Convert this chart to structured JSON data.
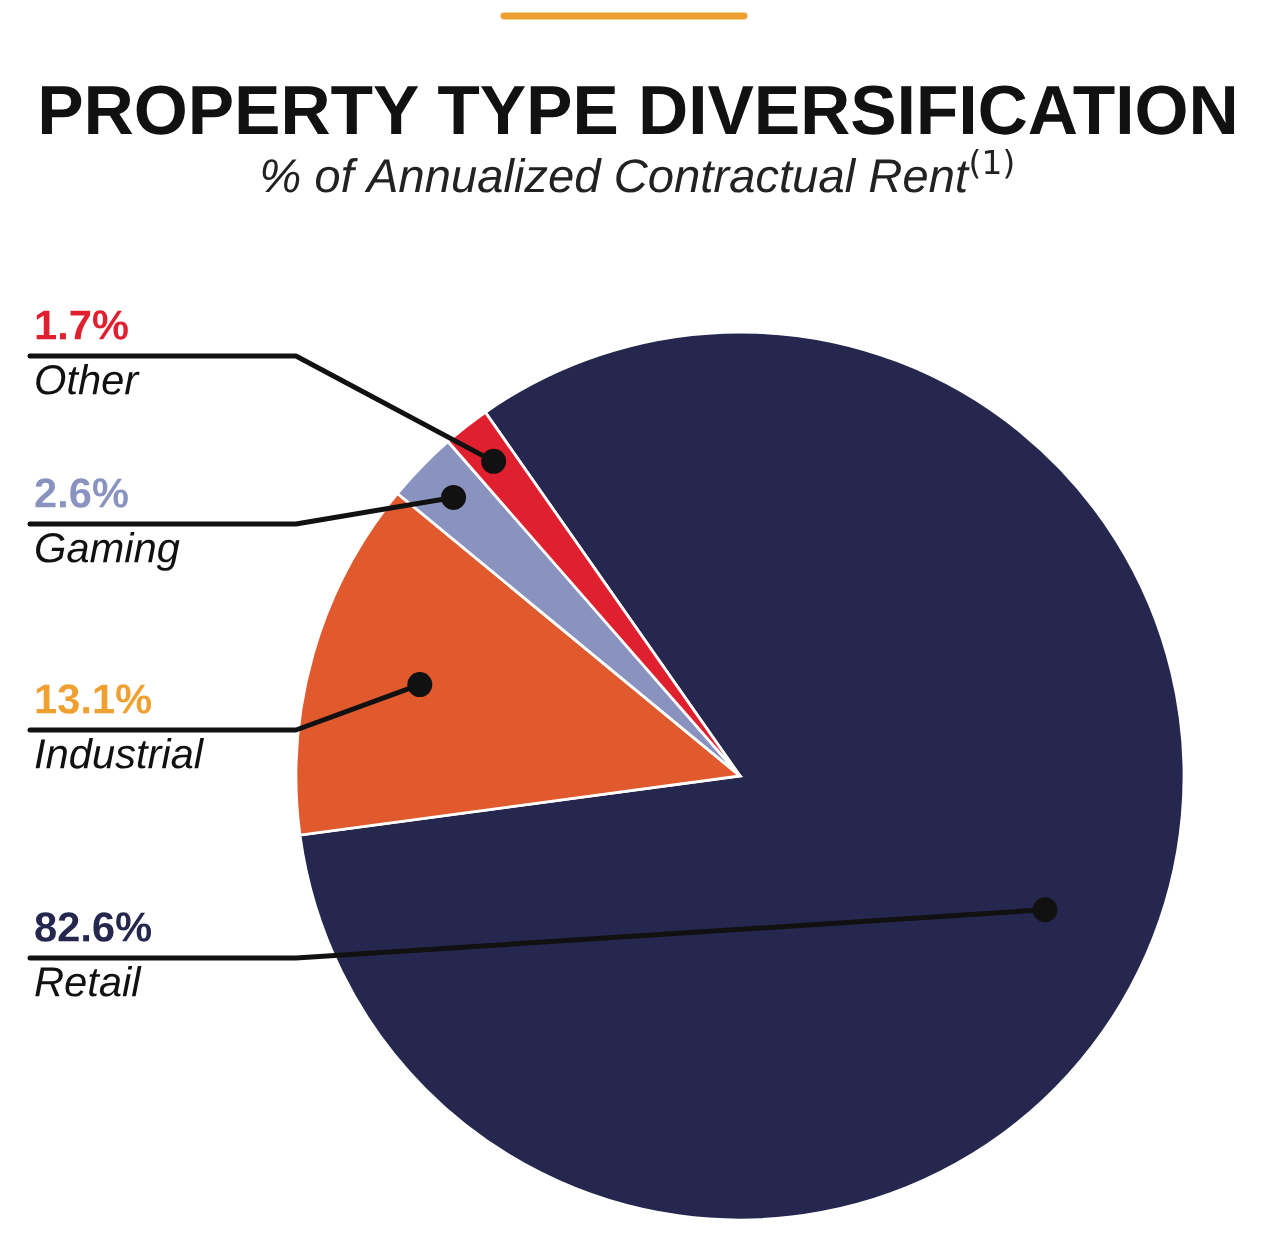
{
  "chart_data": {
    "type": "pie",
    "title": "PROPERTY TYPE DIVERSIFICATION",
    "subtitle": "% of Annualized Contractual Rent$^{(1)}$",
    "categories": [
      "Retail",
      "Industrial",
      "Gaming",
      "Other"
    ],
    "values": [
      82.6,
      13.1,
      2.6,
      1.7
    ],
    "colors": [
      "#25274f",
      "#e05a2e",
      "#8a93c0",
      "#e0202f"
    ],
    "value_labels": [
      "82.6%",
      "13.1%",
      "2.6%",
      "1.7%"
    ],
    "legend": false
  }
}
